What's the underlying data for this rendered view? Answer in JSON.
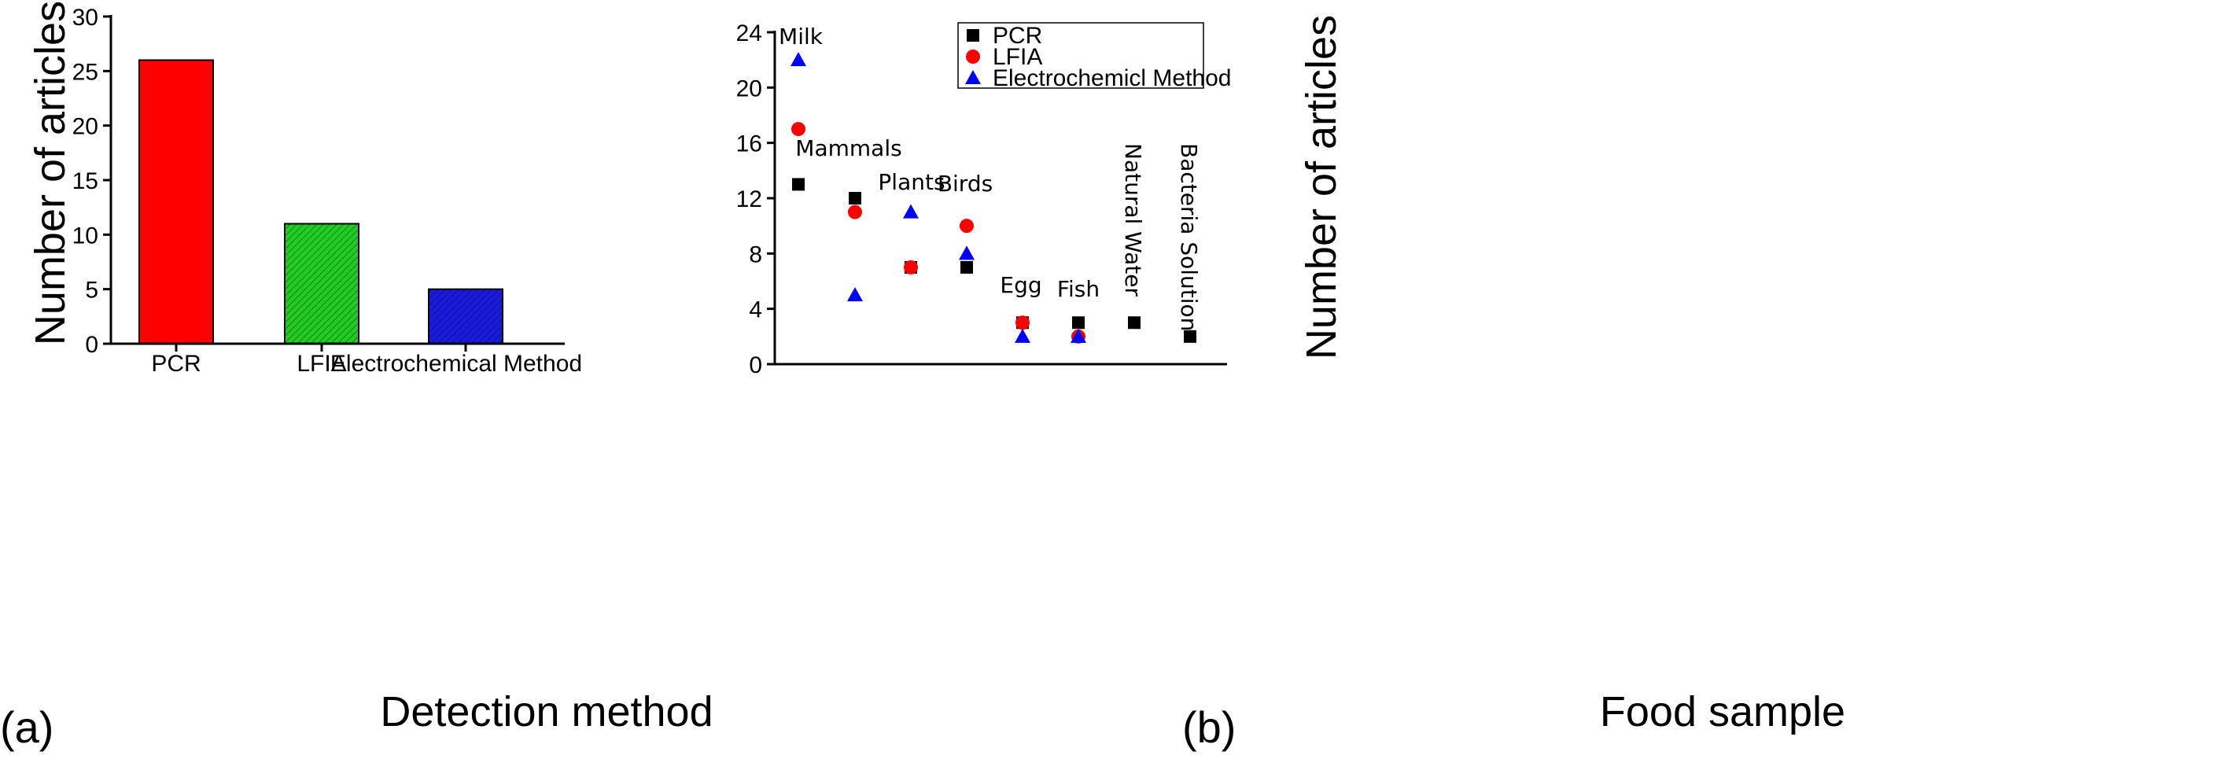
{
  "chart_data": [
    {
      "type": "bar",
      "panel_label": "(a)",
      "title": "",
      "xlabel": "Detection method",
      "ylabel": "Number of articles",
      "ylim": [
        0,
        30
      ],
      "yticks": [
        0,
        5,
        10,
        15,
        20,
        25,
        30
      ],
      "categories": [
        "PCR",
        "LFIA",
        "Electrochemical Method"
      ],
      "values": [
        26,
        11,
        5
      ],
      "colors": [
        "#ff0000",
        "#22cc22",
        "#1a1adc"
      ],
      "grid": false
    },
    {
      "type": "scatter",
      "panel_label": "(b)",
      "title": "",
      "xlabel": "Food sample",
      "ylabel": "Number of articles",
      "ylim": [
        0,
        24
      ],
      "yticks": [
        0,
        4,
        8,
        12,
        16,
        20,
        24
      ],
      "categories": [
        "Milk",
        "Mammals",
        "Plants",
        "Birds",
        "Egg",
        "Fish",
        "Natural Water",
        "Bacteria Solution"
      ],
      "series": [
        {
          "name": "PCR",
          "marker": "square",
          "color": "#000000",
          "values": [
            13,
            12,
            7,
            7,
            3,
            3,
            3,
            2
          ]
        },
        {
          "name": "LFIA",
          "marker": "circle",
          "color": "#ff0000",
          "values": [
            17,
            11,
            7,
            10,
            3,
            2,
            null,
            null
          ]
        },
        {
          "name": "Electrochemicl Method",
          "marker": "triangle",
          "color": "#0000ff",
          "values": [
            22,
            5,
            11,
            8,
            2,
            2,
            null,
            null
          ]
        }
      ],
      "legend_position": "top-right",
      "grid": false
    }
  ]
}
